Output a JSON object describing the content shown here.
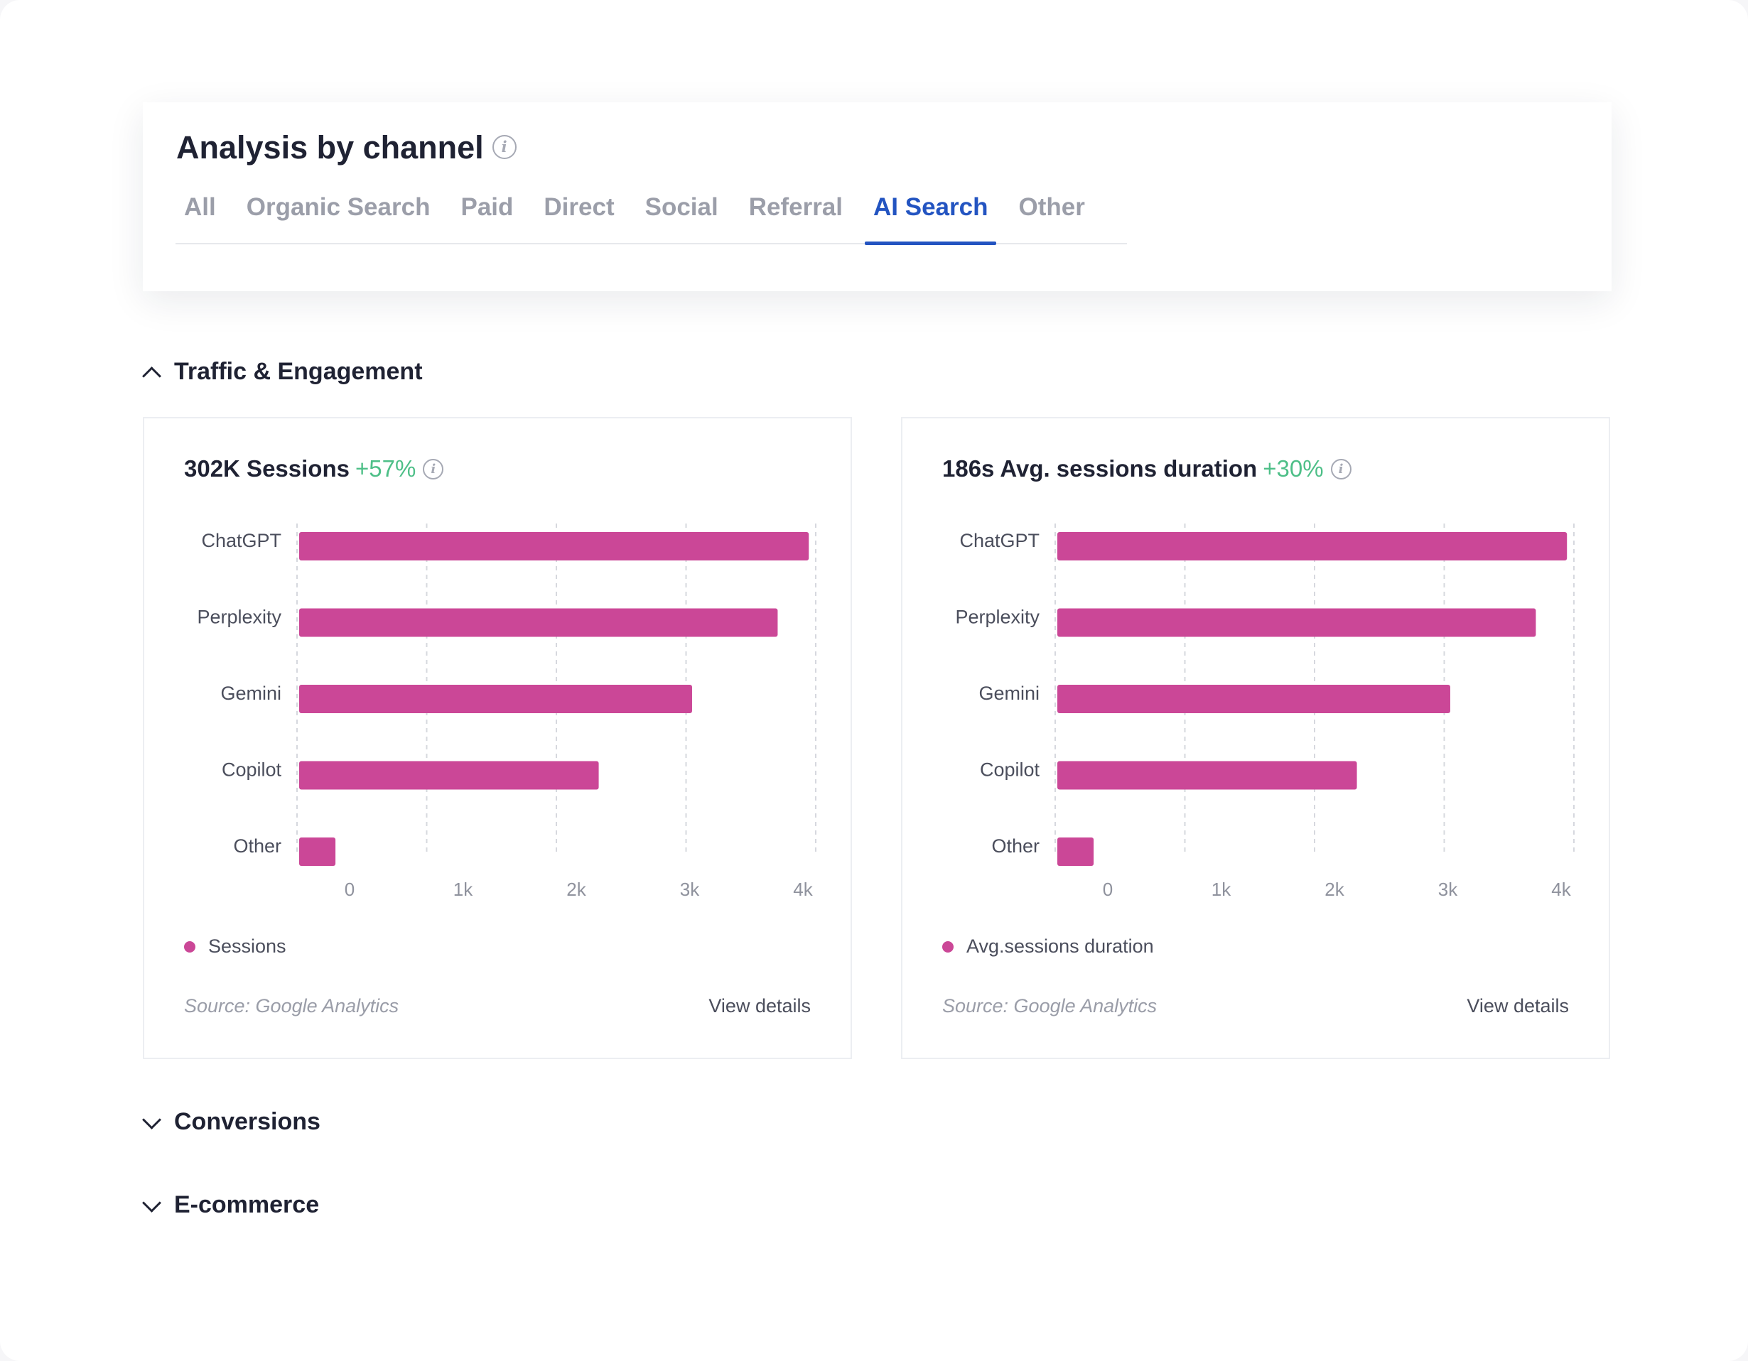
{
  "header": {
    "title": "Analysis by channel",
    "tabs": [
      {
        "label": "All"
      },
      {
        "label": "Organic Search"
      },
      {
        "label": "Paid"
      },
      {
        "label": "Direct"
      },
      {
        "label": "Social"
      },
      {
        "label": "Referral"
      },
      {
        "label": "AI Search"
      },
      {
        "label": "Other"
      }
    ],
    "active_tab": "AI Search"
  },
  "sections": {
    "traffic": {
      "label": "Traffic & Engagement",
      "state": "expanded"
    },
    "conversions": {
      "label": "Conversions",
      "state": "collapsed"
    },
    "ecommerce": {
      "label": "E-commerce",
      "state": "collapsed"
    }
  },
  "cards": {
    "sessions": {
      "metric": "302K Sessions",
      "delta": "+57%",
      "legend": "Sessions",
      "source": "Source: Google Analytics",
      "link": "View details"
    },
    "duration": {
      "metric": "186s Avg. sessions duration",
      "delta": "+30%",
      "legend": "Avg.sessions duration",
      "source": "Source: Google Analytics",
      "link": "View details"
    }
  },
  "colors": {
    "bar": "#cb4797",
    "accent": "#2354c1",
    "positive": "#4ebf88"
  },
  "chart_data": [
    {
      "type": "bar",
      "orientation": "horizontal",
      "categories": [
        "ChatGPT",
        "Perplexity",
        "Gemini",
        "Copilot",
        "Other"
      ],
      "series": [
        {
          "name": "Sessions",
          "values": [
            3930,
            3690,
            3030,
            2310,
            280
          ]
        }
      ],
      "xlim": [
        0,
        4000
      ],
      "xticks": [
        "0",
        "1k",
        "2k",
        "3k",
        "4k"
      ],
      "grid": true,
      "legend_position": "bottom-left"
    },
    {
      "type": "bar",
      "orientation": "horizontal",
      "categories": [
        "ChatGPT",
        "Perplexity",
        "Gemini",
        "Copilot",
        "Other"
      ],
      "series": [
        {
          "name": "Avg.sessions duration",
          "values": [
            3930,
            3690,
            3030,
            2310,
            280
          ]
        }
      ],
      "xlim": [
        0,
        4000
      ],
      "xticks": [
        "0",
        "1k",
        "2k",
        "3k",
        "4k"
      ],
      "grid": true,
      "legend_position": "bottom-left"
    }
  ]
}
